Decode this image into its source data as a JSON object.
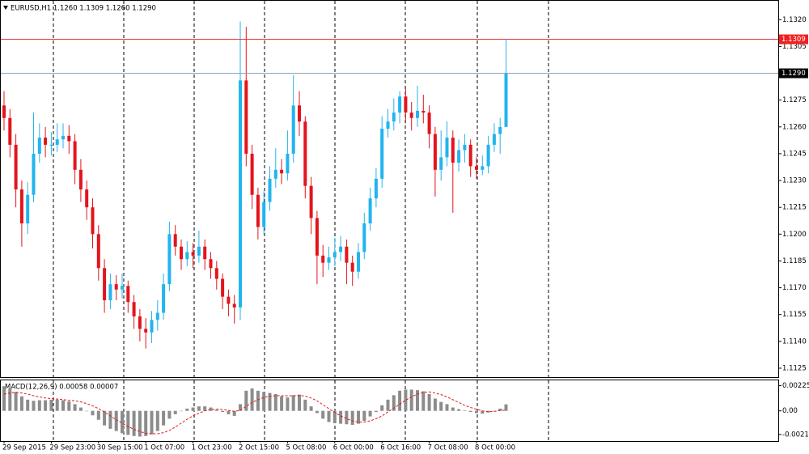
{
  "chart_data": [
    {
      "type": "candlestick",
      "title": "EURUSD,H1  1.1260 1.1309 1.1260 1.1290",
      "up_color": "#22b4ee",
      "down_color": "#e3141c",
      "categories": [
        "29 Sep 2015",
        null,
        null,
        null,
        null,
        null,
        null,
        null,
        "29 Sep 23:00",
        null,
        null,
        null,
        null,
        null,
        null,
        null,
        "30 Sep 15:00",
        null,
        null,
        null,
        null,
        null,
        null,
        null,
        "1 Oct 07:00",
        null,
        null,
        null,
        null,
        null,
        null,
        null,
        "1 Oct 23:00",
        null,
        null,
        null,
        null,
        null,
        null,
        null,
        "2 Oct 15:00",
        null,
        null,
        null,
        null,
        null,
        null,
        null,
        "5 Oct 08:00",
        null,
        null,
        null,
        null,
        null,
        null,
        null,
        "6 Oct 00:00",
        null,
        null,
        null,
        null,
        null,
        null,
        null,
        "6 Oct 16:00",
        null,
        null,
        null,
        null,
        null,
        null,
        null,
        "7 Oct 08:00",
        null,
        null,
        null,
        null,
        null,
        null,
        null,
        "8 Oct 00:00",
        null,
        null,
        null,
        null,
        null
      ],
      "open": [
        1.1272,
        1.1265,
        1.125,
        1.1225,
        1.1206,
        1.1222,
        1.1245,
        1.1254,
        1.125,
        1.125,
        1.1253,
        1.1255,
        1.1252,
        1.1236,
        1.1225,
        1.1215,
        1.12,
        1.1181,
        1.1163,
        1.1172,
        1.1169,
        1.1171,
        1.1162,
        1.1154,
        1.1147,
        1.1145,
        1.1152,
        1.1156,
        1.1172,
        1.12,
        1.1193,
        1.1186,
        1.119,
        1.1188,
        1.1193,
        1.1186,
        1.1181,
        1.1175,
        1.1165,
        1.1161,
        1.1159,
        1.1286,
        1.1245,
        1.1222,
        1.1204,
        1.1218,
        1.1231,
        1.1236,
        1.1234,
        1.1245,
        1.1272,
        1.1263,
        1.1227,
        1.1209,
        1.1188,
        1.1184,
        1.1187,
        1.119,
        1.1193,
        1.1184,
        1.1179,
        1.119,
        1.1206,
        1.122,
        1.1231,
        1.1259,
        1.1263,
        1.1268,
        1.1277,
        1.1268,
        1.1265,
        1.1269,
        1.1268,
        1.1256,
        1.1236,
        1.1243,
        1.1254,
        1.124,
        1.1247,
        1.125,
        1.1238,
        1.1236,
        1.1238,
        1.125,
        1.1256,
        1.126
      ],
      "high": [
        1.128,
        1.127,
        1.1256,
        1.123,
        1.1229,
        1.1268,
        1.1262,
        1.126,
        1.1257,
        1.1262,
        1.1262,
        1.1261,
        1.1256,
        1.1242,
        1.123,
        1.122,
        1.1205,
        1.1186,
        1.1178,
        1.1177,
        1.1178,
        1.1174,
        1.1166,
        1.1158,
        1.1153,
        1.1157,
        1.1163,
        1.1178,
        1.1207,
        1.1205,
        1.1197,
        1.1196,
        1.1195,
        1.1202,
        1.1197,
        1.119,
        1.1185,
        1.1178,
        1.1169,
        1.1166,
        1.1319,
        1.1316,
        1.125,
        1.1226,
        1.1224,
        1.1238,
        1.1248,
        1.1242,
        1.1258,
        1.1289,
        1.128,
        1.1266,
        1.1232,
        1.1213,
        1.1194,
        1.1193,
        1.1198,
        1.1199,
        1.1197,
        1.1188,
        1.1195,
        1.1212,
        1.1226,
        1.1237,
        1.1266,
        1.127,
        1.1276,
        1.128,
        1.1282,
        1.1274,
        1.1283,
        1.1278,
        1.1272,
        1.126,
        1.1258,
        1.1263,
        1.1258,
        1.1253,
        1.1256,
        1.1253,
        1.1243,
        1.1244,
        1.1255,
        1.1262,
        1.1265,
        1.1309
      ],
      "low": [
        1.1258,
        1.1243,
        1.1215,
        1.1193,
        1.12,
        1.1218,
        1.124,
        1.1243,
        1.1244,
        1.1246,
        1.1248,
        1.1245,
        1.1228,
        1.1218,
        1.1208,
        1.1192,
        1.1174,
        1.1156,
        1.1158,
        1.1163,
        1.1164,
        1.1156,
        1.1147,
        1.114,
        1.1136,
        1.1139,
        1.1146,
        1.1152,
        1.1168,
        1.1188,
        1.118,
        1.1182,
        1.1181,
        1.1184,
        1.118,
        1.1175,
        1.1169,
        1.1158,
        1.1154,
        1.115,
        1.1152,
        1.1238,
        1.1214,
        1.1197,
        1.12,
        1.1213,
        1.1226,
        1.1228,
        1.123,
        1.124,
        1.1255,
        1.122,
        1.12,
        1.1172,
        1.1176,
        1.118,
        1.1182,
        1.1185,
        1.1172,
        1.1171,
        1.1175,
        1.1186,
        1.1202,
        1.1215,
        1.1226,
        1.1254,
        1.1258,
        1.1262,
        1.1262,
        1.1258,
        1.126,
        1.1262,
        1.1248,
        1.1221,
        1.123,
        1.1238,
        1.1212,
        1.1235,
        1.124,
        1.1232,
        1.1231,
        1.1233,
        1.1234,
        1.1246,
        1.1245,
        1.126
      ],
      "close": [
        1.1265,
        1.125,
        1.1225,
        1.1206,
        1.1222,
        1.1245,
        1.1254,
        1.125,
        1.125,
        1.1253,
        1.1255,
        1.1252,
        1.1236,
        1.1225,
        1.1215,
        1.12,
        1.1181,
        1.1163,
        1.1172,
        1.1169,
        1.1171,
        1.1162,
        1.1154,
        1.1147,
        1.1145,
        1.1152,
        1.1156,
        1.1172,
        1.12,
        1.1193,
        1.1186,
        1.119,
        1.1188,
        1.1193,
        1.1186,
        1.1181,
        1.1175,
        1.1165,
        1.1161,
        1.1159,
        1.1286,
        1.1245,
        1.1222,
        1.1204,
        1.1218,
        1.1231,
        1.1236,
        1.1234,
        1.1245,
        1.1272,
        1.1263,
        1.1227,
        1.1209,
        1.1188,
        1.1184,
        1.1187,
        1.119,
        1.1193,
        1.1184,
        1.1179,
        1.119,
        1.1206,
        1.122,
        1.1231,
        1.1259,
        1.1263,
        1.1268,
        1.1277,
        1.1268,
        1.1265,
        1.1269,
        1.1268,
        1.1256,
        1.1236,
        1.1243,
        1.1254,
        1.124,
        1.1247,
        1.125,
        1.1238,
        1.1236,
        1.1238,
        1.125,
        1.1256,
        1.126,
        1.129
      ],
      "ylim": [
        1.112,
        1.1331
      ],
      "yticks": [
        {
          "value": 1.132,
          "label": "1.1320"
        },
        1.1305,
        1.1275,
        {
          "value": 1.126,
          "label": "1.1260"
        },
        1.1245,
        {
          "value": 1.123,
          "label": "1.1230"
        },
        1.1215,
        {
          "value": 1.12,
          "label": "1.1200"
        },
        1.1185,
        {
          "value": 1.117,
          "label": "1.1170"
        },
        1.1155,
        {
          "value": 1.114,
          "label": "1.1140"
        },
        1.1125
      ],
      "lines": [
        {
          "value": 1.1309,
          "color": "#f02020",
          "label_color": "#f02020"
        },
        {
          "value": 1.129,
          "label": "1.1290",
          "color": "#8aa4ba",
          "label_color": "#000000"
        }
      ]
    },
    {
      "type": "macd",
      "title": "MACD(12,26,9) 0.00058 0.00007",
      "series": [
        {
          "style": "bar",
          "color": "#8c8c8c",
          "values": [
            0.0022,
            0.002,
            0.0017,
            0.0013,
            0.001,
            0.0009,
            0.00095,
            0.00095,
            0.001,
            0.001,
            0.00095,
            0.00085,
            0.0006,
            0.0003,
            0,
            -0.0004,
            -0.0008,
            -0.0013,
            -0.0016,
            -0.0018,
            -0.002,
            -0.00215,
            -0.00225,
            -0.0023,
            -0.00225,
            -0.0021,
            -0.0018,
            -0.0013,
            -0.0007,
            -0.0003,
            0,
            0.0002,
            0.0003,
            0.0004,
            0.0004,
            0.0003,
            0.0001,
            -0.0001,
            -0.0003,
            -0.00045,
            0.0006,
            0.0018,
            0.002,
            0.0018,
            0.0017,
            0.0016,
            0.0015,
            0.0013,
            0.0012,
            0.0014,
            0.00145,
            0.001,
            0.0004,
            -0.0002,
            -0.0007,
            -0.001,
            -0.0011,
            -0.00115,
            -0.0012,
            -0.00125,
            -0.00115,
            -0.0009,
            -0.0005,
            -0.0001,
            0.0005,
            0.001,
            0.0014,
            0.0018,
            0.0019,
            0.0019,
            0.00185,
            0.00175,
            0.0015,
            0.0011,
            0.0008,
            0.0006,
            0.0003,
            0.00015,
            5e-05,
            -0.0001,
            -0.0002,
            -0.00025,
            -0.00015,
            0,
            0.0002,
            0.00058
          ]
        },
        {
          "style": "line",
          "color": "#e01818",
          "values": [
            0.0015,
            0.0016,
            0.00165,
            0.0016,
            0.0015,
            0.00135,
            0.00125,
            0.00115,
            0.0011,
            0.00105,
            0.001,
            0.00095,
            0.0009,
            0.0008,
            0.00065,
            0.00045,
            0.0002,
            -0.0001,
            -0.00045,
            -0.0008,
            -0.0011,
            -0.0014,
            -0.00165,
            -0.00185,
            -0.002,
            -0.00205,
            -0.00205,
            -0.00195,
            -0.00175,
            -0.00145,
            -0.0011,
            -0.00075,
            -0.00045,
            -0.0002,
            0,
            0.0001,
            0.00015,
            0.00012,
            5e-05,
            -5e-05,
            5e-05,
            0.0004,
            0.00075,
            0.001,
            0.0012,
            0.0013,
            0.00135,
            0.00135,
            0.00135,
            0.00135,
            0.00138,
            0.00132,
            0.00115,
            0.0009,
            0.00055,
            0.0002,
            -0.00015,
            -0.00045,
            -0.0007,
            -0.0009,
            -0.001,
            -0.001,
            -0.0009,
            -0.0007,
            -0.00045,
            -0.0001,
            0.00025,
            0.0006,
            0.00095,
            0.00125,
            0.0015,
            0.00165,
            0.0017,
            0.0016,
            0.00145,
            0.00125,
            0.001,
            0.00075,
            0.0005,
            0.0003,
            0.00015,
            0,
            -8e-05,
            -5e-05,
            3e-05,
            7e-05
          ]
        }
      ],
      "ylim": [
        -0.0027,
        0.0028
      ],
      "yticks": [
        0.00225,
        {
          "value": 0,
          "label": "0.00"
        },
        -0.00211
      ]
    }
  ]
}
